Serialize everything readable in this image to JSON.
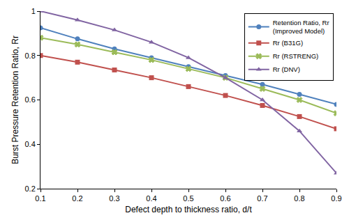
{
  "chart_data": {
    "type": "line",
    "x_label": "Defect depth to thickness ratio, d/t",
    "y_label": "Burst Pressure Retention Ratio, Rr",
    "x": [
      0.1,
      0.2,
      0.3,
      0.4,
      0.5,
      0.6,
      0.7,
      0.8,
      0.9
    ],
    "series": [
      {
        "name": "Retention Ratio, Rr\n(Improved Model)",
        "color": "#4f81bd",
        "marker": "circle",
        "values": [
          0.925,
          0.875,
          0.83,
          0.79,
          0.75,
          0.71,
          0.67,
          0.625,
          0.58
        ]
      },
      {
        "name": "Rr (B31G)",
        "color": "#c0504d",
        "marker": "square",
        "values": [
          0.8,
          0.77,
          0.735,
          0.7,
          0.66,
          0.62,
          0.575,
          0.525,
          0.47
        ]
      },
      {
        "name": "Rr (RSTRENG)",
        "color": "#9bbb59",
        "marker": "x",
        "values": [
          0.88,
          0.85,
          0.815,
          0.78,
          0.74,
          0.7,
          0.65,
          0.6,
          0.54
        ]
      },
      {
        "name": "Rr (DNV)",
        "color": "#8064a2",
        "marker": "triangle-up",
        "values": [
          1.0,
          0.96,
          0.915,
          0.86,
          0.79,
          0.7,
          0.6,
          0.46,
          0.27
        ]
      }
    ],
    "xlim": [
      0.1,
      0.9
    ],
    "xticks": [
      0.1,
      0.2,
      0.3,
      0.4,
      0.5,
      0.6,
      0.7,
      0.8,
      0.9
    ],
    "ylim": [
      0.2,
      1
    ],
    "yticks": [
      0.2,
      0.4,
      0.6,
      0.8,
      1
    ],
    "grid": false,
    "legend": "top right"
  }
}
